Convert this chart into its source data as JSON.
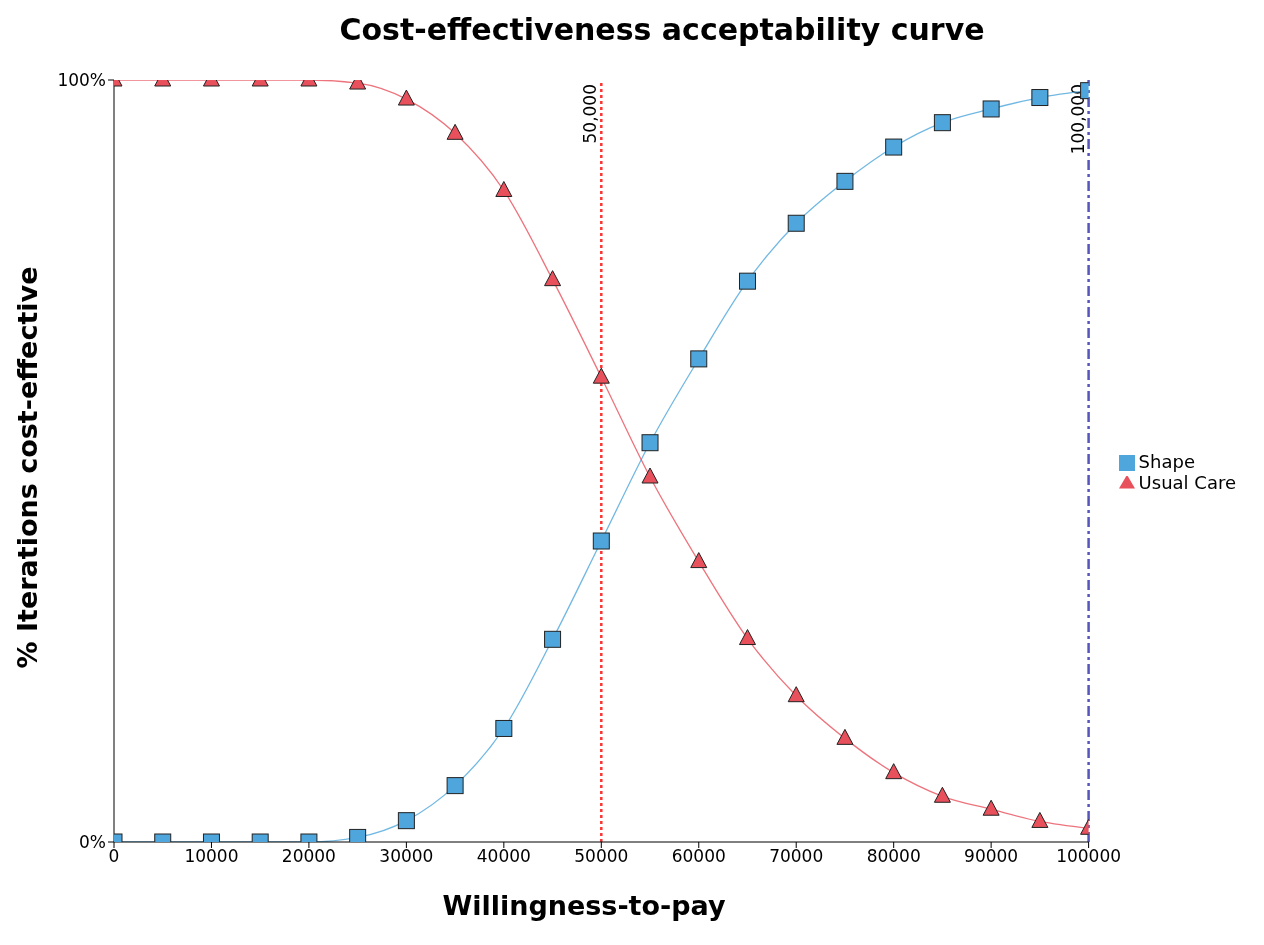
{
  "chart_data": {
    "type": "line",
    "title": "Cost-effectiveness acceptability curve",
    "xlabel": "Willingness-to-pay",
    "ylabel": "% Iterations cost-effective",
    "x": [
      0,
      5000,
      10000,
      15000,
      20000,
      25000,
      30000,
      35000,
      40000,
      45000,
      50000,
      55000,
      60000,
      65000,
      70000,
      75000,
      80000,
      85000,
      90000,
      95000,
      100000
    ],
    "series": [
      {
        "name": "Shape",
        "color": "#4ea6dc",
        "marker": "square",
        "values": [
          0,
          0,
          0,
          0,
          0,
          0.6,
          2.8,
          7.4,
          14.9,
          26.6,
          39.5,
          52.4,
          63.4,
          73.6,
          81.2,
          86.7,
          91.2,
          94.4,
          96.2,
          97.7,
          98.6
        ]
      },
      {
        "name": "Usual Care",
        "color": "#e8505b",
        "marker": "triangle",
        "values": [
          100,
          100,
          100,
          100,
          100,
          99.6,
          97.5,
          93,
          85.5,
          73.8,
          61,
          47.9,
          36.8,
          26.7,
          19.2,
          13.6,
          9.1,
          6,
          4.3,
          2.7,
          1.8
        ]
      }
    ],
    "xlim": [
      0,
      100000
    ],
    "xticks": [
      0,
      10000,
      20000,
      30000,
      40000,
      50000,
      60000,
      70000,
      80000,
      90000,
      100000
    ],
    "ylim": [
      0,
      100
    ],
    "yticks": [
      {
        "value": 0,
        "label": "0%"
      },
      {
        "value": 100,
        "label": "100%"
      }
    ],
    "ref_lines": [
      {
        "axis": "x",
        "value": 50000,
        "label": "50,000",
        "color": "#ff3333",
        "line_style": "dotted"
      },
      {
        "axis": "x",
        "value": 100000,
        "label": "100,000",
        "color": "#5555bb",
        "line_style": "dashdot"
      }
    ],
    "grid": false,
    "legend": "right",
    "line_style": "solid"
  }
}
